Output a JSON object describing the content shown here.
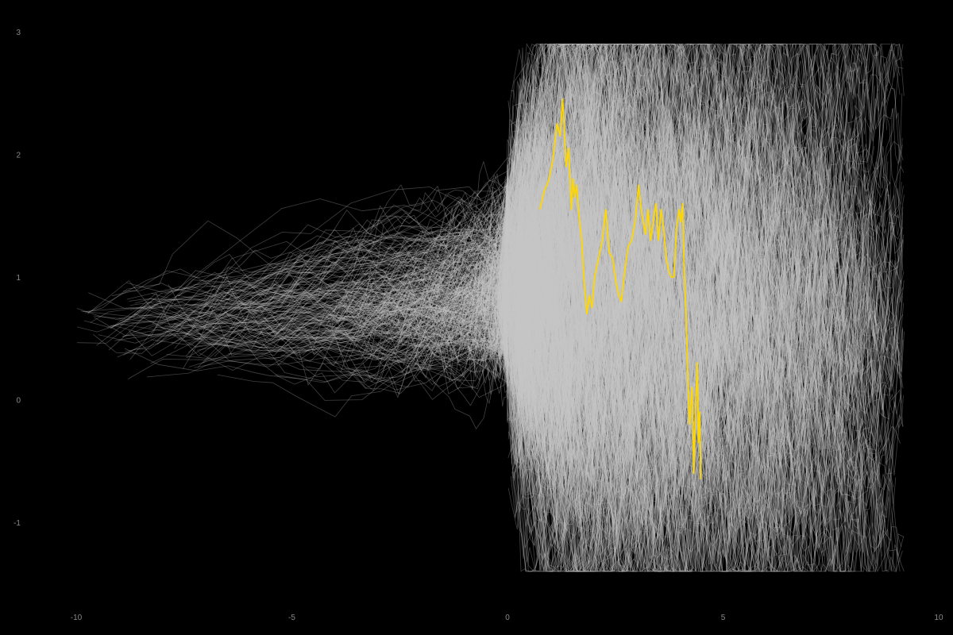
{
  "chart_data": {
    "type": "line",
    "title": "",
    "xlabel": "",
    "ylabel": "",
    "xlim": [
      -10,
      10
    ],
    "ylim": [
      -1.4,
      3
    ],
    "x_ticks": [
      -10,
      -5,
      0,
      5,
      10
    ],
    "y_ticks": [
      -1,
      0,
      1,
      2,
      3
    ],
    "x_tick_labels": [
      "-10",
      "-5",
      "0",
      "5",
      "10"
    ],
    "y_tick_labels": [
      "-1",
      "0",
      "1",
      "2",
      "3"
    ],
    "grid": false,
    "legend": "none",
    "background_color": "#000000",
    "background_series_color": "#c8c8c8",
    "background_series_count": 1500,
    "highlight_color": "#ffd700",
    "highlighted_series": {
      "x": [
        0.75,
        0.85,
        0.95,
        1.05,
        1.15,
        1.22,
        1.28,
        1.32,
        1.36,
        1.42,
        1.48,
        1.52,
        1.56,
        1.6,
        1.66,
        1.72,
        1.78,
        1.84,
        1.9,
        1.96,
        2.02,
        2.08,
        2.14,
        2.2,
        2.28,
        2.36,
        2.44,
        2.52,
        2.58,
        2.64,
        2.72,
        2.8,
        2.88,
        2.96,
        3.04,
        3.12,
        3.2,
        3.26,
        3.32,
        3.38,
        3.44,
        3.5,
        3.56,
        3.62,
        3.68,
        3.74,
        3.8,
        3.86,
        3.92,
        3.98,
        4.02,
        4.06,
        4.1,
        4.14,
        4.18,
        4.22,
        4.28,
        4.32,
        4.36,
        4.4,
        4.43,
        4.46,
        4.48
      ],
      "y": [
        1.55,
        1.7,
        1.78,
        1.95,
        2.25,
        2.15,
        2.45,
        2.2,
        1.9,
        2.05,
        1.55,
        1.8,
        1.65,
        1.75,
        1.5,
        1.3,
        0.95,
        0.7,
        0.85,
        0.75,
        1.0,
        1.1,
        1.2,
        1.3,
        1.55,
        1.2,
        1.15,
        0.95,
        0.85,
        0.8,
        1.05,
        1.25,
        1.3,
        1.45,
        1.75,
        1.5,
        1.35,
        1.55,
        1.3,
        1.45,
        1.6,
        1.3,
        1.55,
        1.4,
        1.15,
        1.05,
        1.0,
        1.0,
        1.4,
        1.55,
        1.45,
        1.6,
        1.05,
        0.7,
        0.2,
        -0.2,
        0.1,
        -0.6,
        -0.1,
        0.3,
        -0.35,
        -0.1,
        -0.65
      ]
    }
  }
}
